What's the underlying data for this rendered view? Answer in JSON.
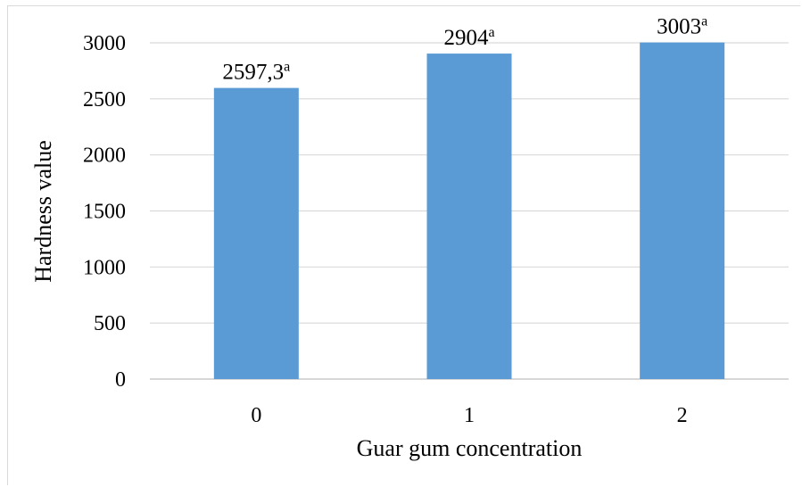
{
  "chart_data": {
    "type": "bar",
    "title": "",
    "xlabel": "Guar gum concentration",
    "ylabel": "Hardness value",
    "categories": [
      "0",
      "1",
      "2"
    ],
    "series": [
      {
        "values": [
          2597.3,
          2904,
          3003
        ],
        "data_labels": [
          "2597,3",
          "2904",
          "3003"
        ],
        "superscripts": [
          "a",
          "a",
          "a"
        ]
      }
    ],
    "ylim": [
      0,
      3000
    ],
    "yticks": [
      "0",
      "500",
      "1000",
      "1500",
      "2000",
      "2500",
      "3000"
    ],
    "grid": true,
    "legend": "none",
    "colors": {
      "bar": "#5b9bd5",
      "grid": "#d9d9d9"
    }
  }
}
